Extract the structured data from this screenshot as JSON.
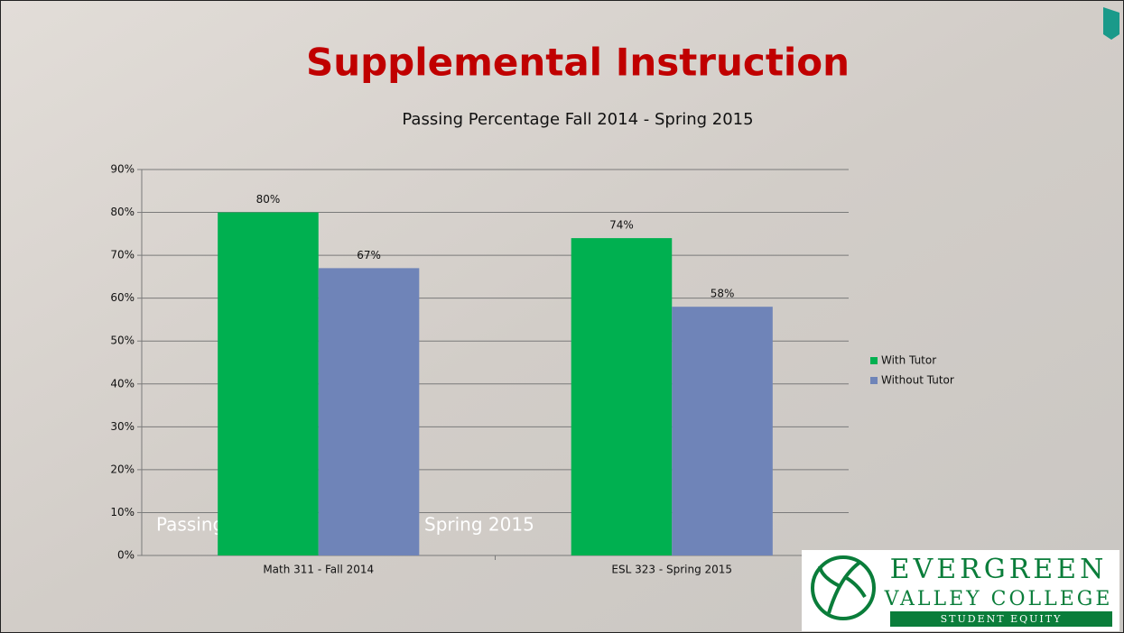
{
  "slide": {
    "title": "Supplemental Instruction",
    "background_text": [
      "Passing",
      "Spring 2015"
    ],
    "logo": {
      "line1": "EVERGREEN",
      "line2": "VALLEY COLLEGE",
      "line3": "STUDENT EQUITY"
    }
  },
  "chart_data": {
    "type": "bar",
    "title": "Passing Percentage Fall 2014 - Spring 2015",
    "categories": [
      "Math 311 - Fall 2014",
      "ESL 323 - Spring 2015"
    ],
    "series": [
      {
        "name": "With Tutor",
        "color": "#00b050",
        "values": [
          80,
          74
        ],
        "value_labels": [
          "80%",
          "74%"
        ]
      },
      {
        "name": "Without Tutor",
        "color": "#6f84b8",
        "values": [
          67,
          58
        ],
        "value_labels": [
          "67%",
          "58%"
        ]
      }
    ],
    "ylim": [
      0,
      90
    ],
    "yticks": [
      {
        "value": 0,
        "label": "0%"
      },
      {
        "value": 10,
        "label": "10%"
      },
      {
        "value": 20,
        "label": "20%"
      },
      {
        "value": 30,
        "label": "30%"
      },
      {
        "value": 40,
        "label": "40%"
      },
      {
        "value": 50,
        "label": "50%"
      },
      {
        "value": 60,
        "label": "60%"
      },
      {
        "value": 70,
        "label": "70%"
      },
      {
        "value": 80,
        "label": "80%"
      },
      {
        "value": 90,
        "label": "90%"
      }
    ],
    "grid": true,
    "legend": "right"
  }
}
